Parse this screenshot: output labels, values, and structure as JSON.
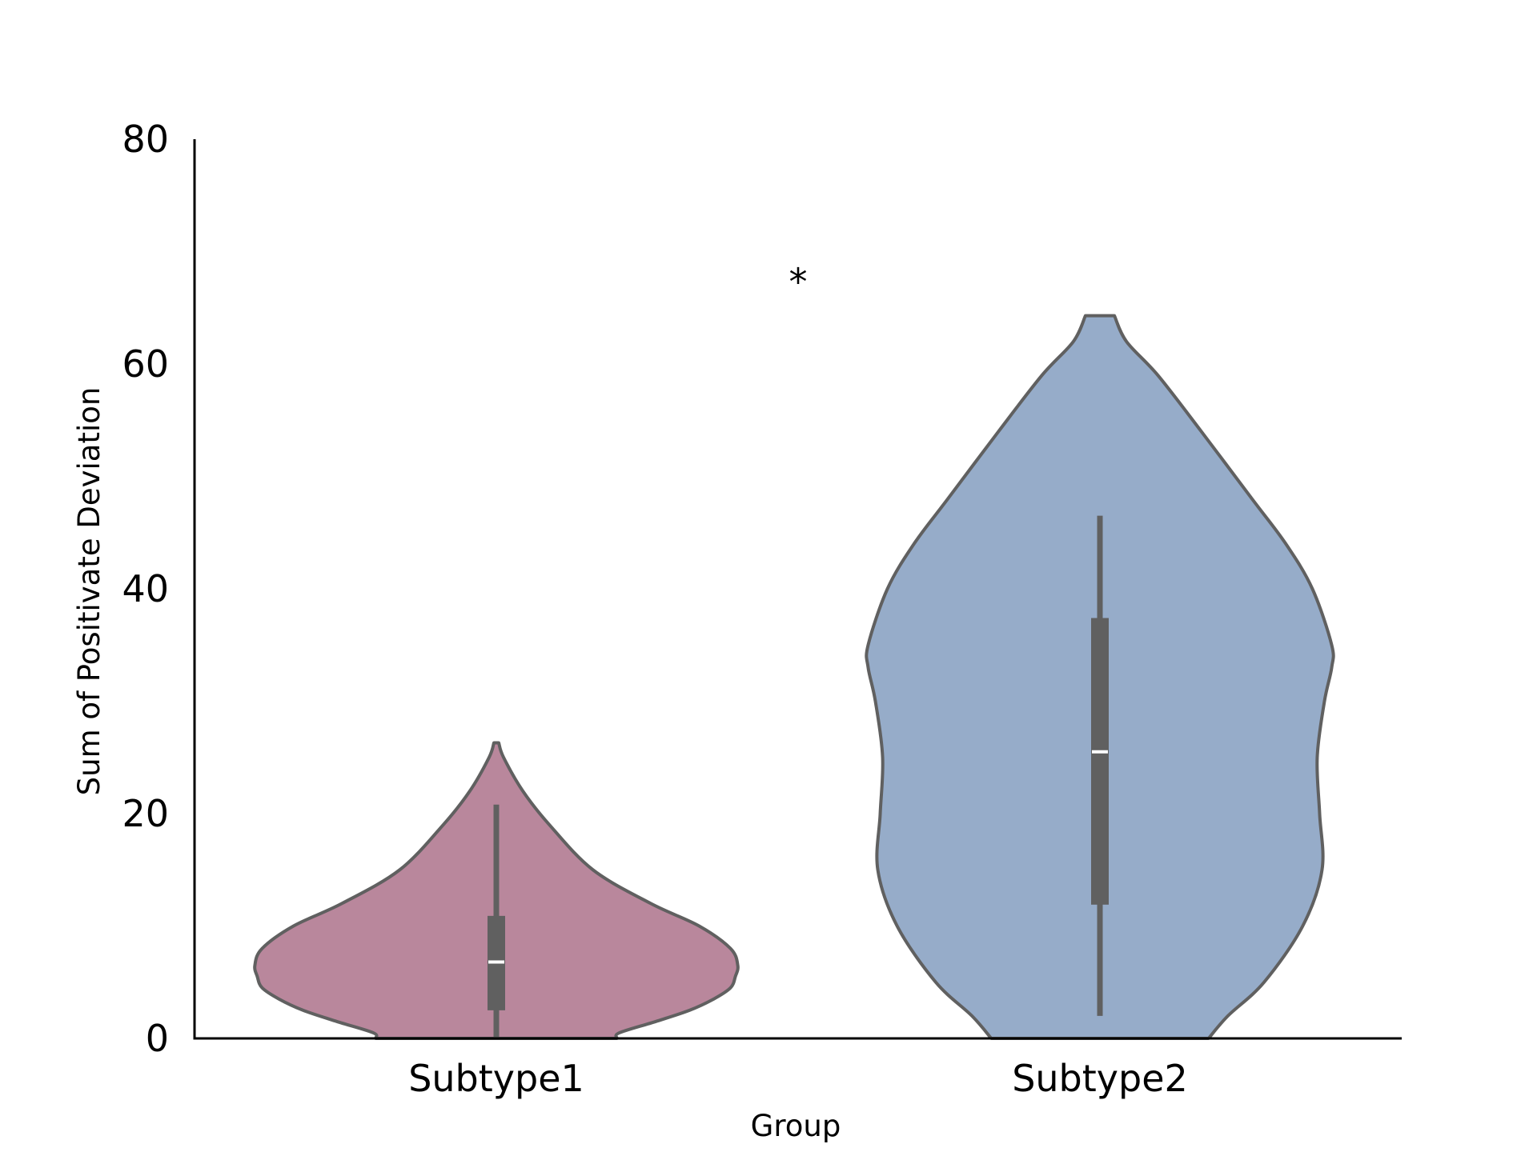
{
  "chart_data": {
    "type": "violin",
    "title": "",
    "xlabel": "Group",
    "ylabel": "Sum of Positivate Deviation",
    "ylim": [
      0,
      80
    ],
    "yticks": [
      0,
      20,
      40,
      60,
      80
    ],
    "categories": [
      "Subtype1",
      "Subtype2"
    ],
    "grid": false,
    "series": [
      {
        "category": "Subtype1",
        "color": "#b9879c",
        "edge_color": "#606060",
        "density_profile": [
          [
            26.3,
            0.01
          ],
          [
            25.0,
            0.03
          ],
          [
            22.0,
            0.11
          ],
          [
            19.0,
            0.22
          ],
          [
            15.0,
            0.4
          ],
          [
            12.0,
            0.64
          ],
          [
            10.0,
            0.84
          ],
          [
            8.0,
            0.97
          ],
          [
            6.5,
            1.0
          ],
          [
            5.5,
            0.99
          ],
          [
            4.5,
            0.97
          ],
          [
            3.5,
            0.9
          ],
          [
            2.5,
            0.8
          ],
          [
            1.5,
            0.66
          ],
          [
            0.5,
            0.51
          ],
          [
            0.0,
            0.5
          ]
        ],
        "box": {
          "whisker_low": 0.0,
          "q1": 2.5,
          "median": 6.8,
          "q3": 10.9,
          "whisker_high": 20.8
        }
      },
      {
        "category": "Subtype2",
        "color": "#96acc9",
        "edge_color": "#606060",
        "density_profile": [
          [
            64.3,
            0.06
          ],
          [
            62.0,
            0.11
          ],
          [
            59.0,
            0.24
          ],
          [
            54.0,
            0.42
          ],
          [
            48.0,
            0.63
          ],
          [
            44.0,
            0.77
          ],
          [
            40.0,
            0.88
          ],
          [
            35.0,
            0.96
          ],
          [
            33.0,
            0.96
          ],
          [
            30.0,
            0.93
          ],
          [
            25.0,
            0.9
          ],
          [
            20.0,
            0.91
          ],
          [
            15.0,
            0.92
          ],
          [
            10.0,
            0.84
          ],
          [
            5.0,
            0.68
          ],
          [
            2.0,
            0.53
          ],
          [
            0.0,
            0.45
          ]
        ],
        "box": {
          "whisker_low": 2.0,
          "q1": 11.9,
          "median": 25.5,
          "q3": 37.4,
          "whisker_high": 46.5
        }
      }
    ],
    "annotation": {
      "text": "*",
      "x_between": [
        "Subtype1",
        "Subtype2"
      ],
      "y": 68
    }
  }
}
